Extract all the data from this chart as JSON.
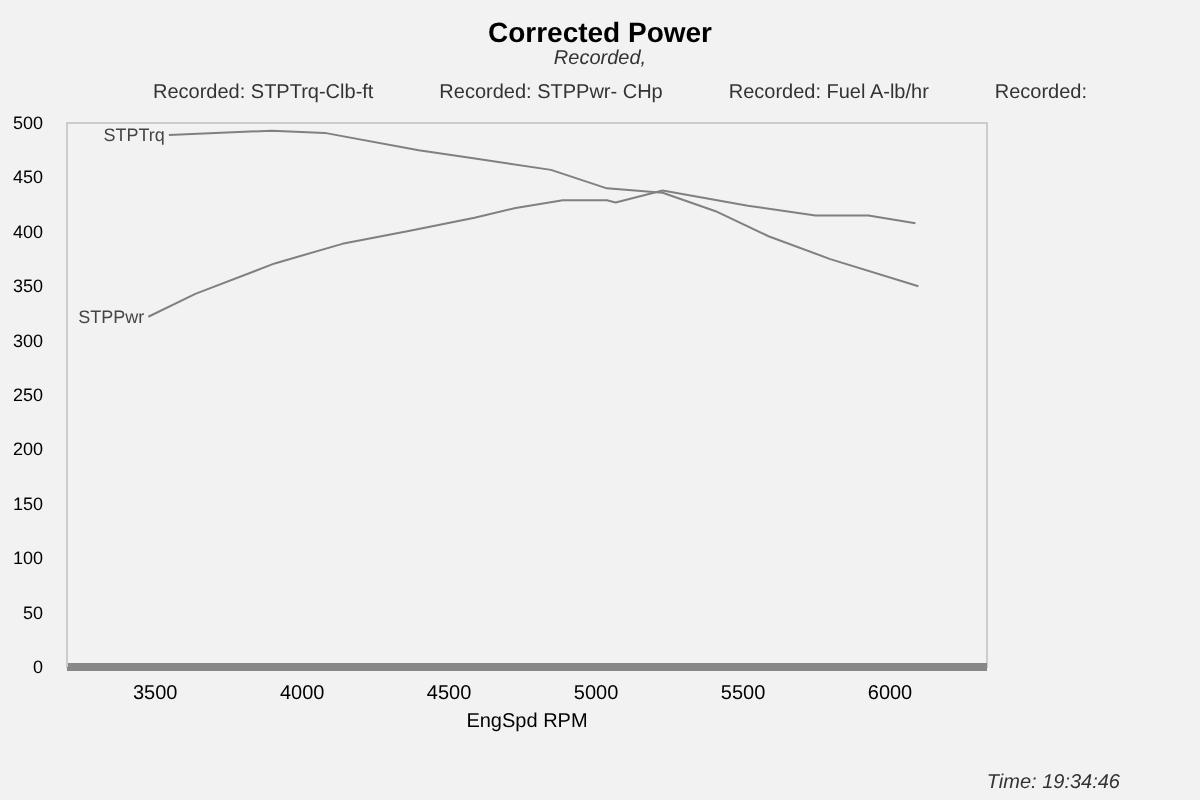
{
  "chart_data": {
    "type": "line",
    "title": "Corrected Power",
    "subtitle": "Recorded,",
    "xlabel": "EngSpd  RPM",
    "annotations": [
      "Recorded: STPTrq-Clb-ft",
      "Recorded: STPPwr- CHp",
      "Recorded: Fuel A-lb/hr",
      "Recorded:",
      "Time: 19:34:46"
    ],
    "series": [
      {
        "name": "STPTrq",
        "color": "#808080",
        "x": [
          3550,
          3900,
          4080,
          4400,
          4580,
          4850,
          5040,
          5230,
          5410,
          5590,
          5800,
          6100
        ],
        "values": [
          488,
          492,
          490,
          474,
          467,
          456,
          439,
          435,
          418,
          395,
          374,
          349
        ]
      },
      {
        "name": "STPPwr",
        "color": "#808080",
        "x": [
          3480,
          3640,
          3910,
          4140,
          4370,
          4590,
          4730,
          4890,
          5040,
          5070,
          5230,
          5520,
          5750,
          5930,
          6090
        ],
        "values": [
          321,
          342,
          370,
          388,
          400,
          412,
          421,
          428,
          428,
          426,
          437,
          423,
          414,
          414,
          407
        ]
      }
    ],
    "xlim": [
      3200,
      6330
    ],
    "xticks": [
      3500,
      4000,
      4500,
      5000,
      5500,
      6000
    ],
    "ylim": [
      0,
      500
    ],
    "yticks": [
      0,
      50,
      100,
      150,
      200,
      250,
      300,
      350,
      400,
      450,
      500
    ],
    "grid": false,
    "legend": false,
    "marker": "none",
    "line_style": "solid"
  }
}
